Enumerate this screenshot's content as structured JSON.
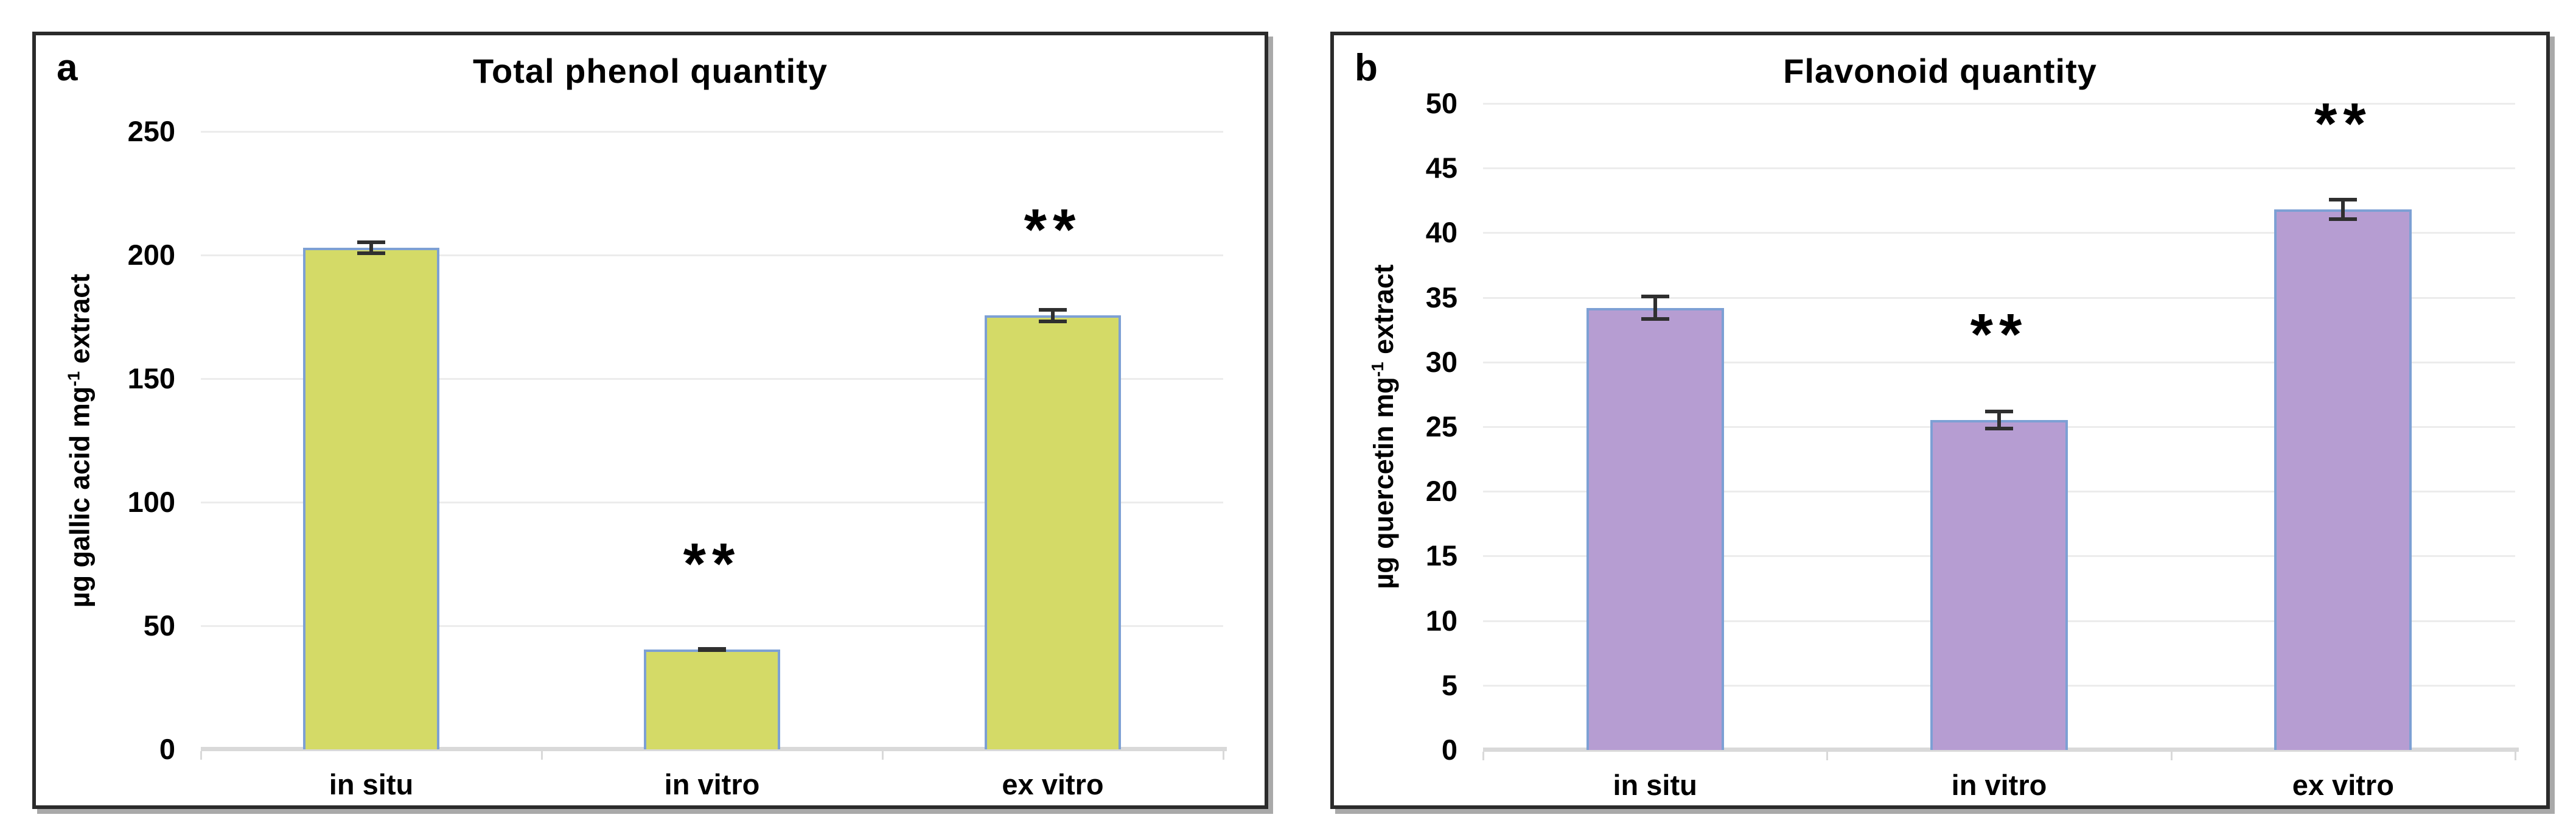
{
  "page": {
    "background": "#ffffff"
  },
  "chart_data": [
    {
      "type": "bar",
      "panel_label": "a",
      "title": "Total phenol quantity",
      "categories": [
        "in situ",
        "in vitro",
        "ex vitro"
      ],
      "values": [
        203,
        40.5,
        175.5
      ],
      "errors": [
        3,
        1,
        3
      ],
      "significance": [
        "",
        "**",
        "**"
      ],
      "ylabel": "µg gallic acid mg⁻¹ extract",
      "ylabel_main": "µg gallic acid mg",
      "ylabel_sup": "-1",
      "ylabel_tail": "extract",
      "ylim": [
        0,
        250
      ],
      "ytick_step": 50,
      "yticks": [
        0,
        50,
        100,
        150,
        200,
        250
      ],
      "grid": true,
      "legend": "none",
      "bar_fill": "#d4da67",
      "bar_border": "#7da0d4",
      "error_color": "#2f2f2f",
      "grid_color": "#ececec",
      "baseline_color": "#d9d9d9"
    },
    {
      "type": "bar",
      "panel_label": "b",
      "title": "Flavonoid quantity",
      "categories": [
        "in situ",
        "in vitro",
        "ex vitro"
      ],
      "values": [
        34.2,
        25.5,
        41.8
      ],
      "errors": [
        1,
        0.8,
        0.9
      ],
      "significance": [
        "",
        "**",
        "**"
      ],
      "ylabel": "µg quercetin mg⁻¹ extract",
      "ylabel_main": "µg quercetin mg",
      "ylabel_sup": "-1",
      "ylabel_tail": "extract",
      "ylim": [
        0,
        50
      ],
      "ytick_step": 5,
      "yticks": [
        0,
        5,
        10,
        15,
        20,
        25,
        30,
        35,
        40,
        45,
        50
      ],
      "grid": true,
      "legend": "none",
      "bar_fill": "#b69dd2",
      "bar_border": "#7da0d4",
      "error_color": "#2f2f2f",
      "grid_color": "#ececec",
      "baseline_color": "#d9d9d9"
    }
  ]
}
